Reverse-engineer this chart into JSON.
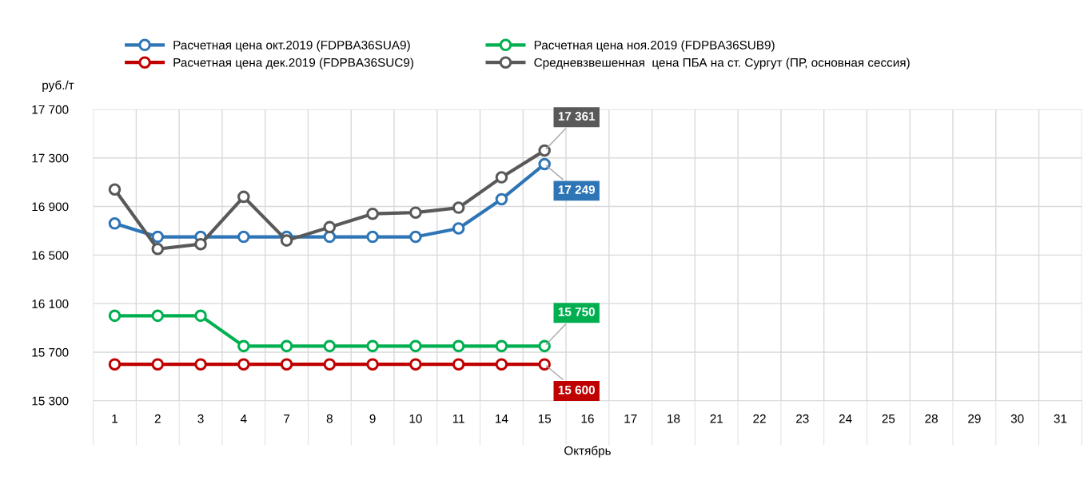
{
  "chart_data": {
    "type": "line",
    "xlabel": "Октябрь",
    "ylabel": "руб./т",
    "categories": [
      "1",
      "2",
      "3",
      "4",
      "7",
      "8",
      "9",
      "10",
      "11",
      "14",
      "15",
      "16",
      "17",
      "18",
      "21",
      "22",
      "23",
      "24",
      "25",
      "28",
      "29",
      "30",
      "31"
    ],
    "ylim": [
      15300,
      17700
    ],
    "yticks": [
      {
        "value": 15300,
        "label": "15 300"
      },
      {
        "value": 15700,
        "label": "15 700"
      },
      {
        "value": 16100,
        "label": "16 100"
      },
      {
        "value": 16500,
        "label": "16 500"
      },
      {
        "value": 16900,
        "label": "16 900"
      },
      {
        "value": 17300,
        "label": "17 300"
      },
      {
        "value": 17700,
        "label": "17 700"
      }
    ],
    "grid": true,
    "legend": "top",
    "marker": "circle",
    "line_style": "solid",
    "series": [
      {
        "name": "Расчетная цена окт.2019 (FDPBA36SUA9)",
        "color": "#2e75b6",
        "values": [
          16760,
          16650,
          16650,
          16650,
          16650,
          16650,
          16650,
          16650,
          16720,
          16960,
          17249,
          null,
          null,
          null,
          null,
          null,
          null,
          null,
          null,
          null,
          null,
          null,
          null
        ],
        "value_labels": [
          null,
          null,
          null,
          null,
          null,
          null,
          null,
          null,
          null,
          null,
          "17 249",
          null,
          null,
          null,
          null,
          null,
          null,
          null,
          null,
          null,
          null,
          null,
          null
        ]
      },
      {
        "name": "Расчетная цена ноя.2019 (FDPBA36SUB9)",
        "color": "#00b050",
        "values": [
          16000,
          16000,
          16000,
          15750,
          15750,
          15750,
          15750,
          15750,
          15750,
          15750,
          15750,
          null,
          null,
          null,
          null,
          null,
          null,
          null,
          null,
          null,
          null,
          null,
          null
        ],
        "value_labels": [
          null,
          null,
          null,
          null,
          null,
          null,
          null,
          null,
          null,
          null,
          "15 750",
          null,
          null,
          null,
          null,
          null,
          null,
          null,
          null,
          null,
          null,
          null,
          null
        ]
      },
      {
        "name": "Расчетная цена дек.2019 (FDPBA36SUC9)",
        "color": "#c00000",
        "values": [
          15600,
          15600,
          15600,
          15600,
          15600,
          15600,
          15600,
          15600,
          15600,
          15600,
          15600,
          null,
          null,
          null,
          null,
          null,
          null,
          null,
          null,
          null,
          null,
          null,
          null
        ],
        "value_labels": [
          null,
          null,
          null,
          null,
          null,
          null,
          null,
          null,
          null,
          null,
          "15 600",
          null,
          null,
          null,
          null,
          null,
          null,
          null,
          null,
          null,
          null,
          null,
          null
        ]
      },
      {
        "name": "Средневзвешенная  цена ПБА на ст. Сургут (ПР, основная сессия)",
        "color": "#595959",
        "values": [
          17040,
          16550,
          16590,
          16980,
          16620,
          16730,
          16840,
          16850,
          16890,
          17140,
          17361,
          null,
          null,
          null,
          null,
          null,
          null,
          null,
          null,
          null,
          null,
          null,
          null
        ],
        "value_labels": [
          null,
          null,
          null,
          null,
          null,
          null,
          null,
          null,
          null,
          null,
          "17 361",
          null,
          null,
          null,
          null,
          null,
          null,
          null,
          null,
          null,
          null,
          null,
          null
        ]
      }
    ]
  }
}
